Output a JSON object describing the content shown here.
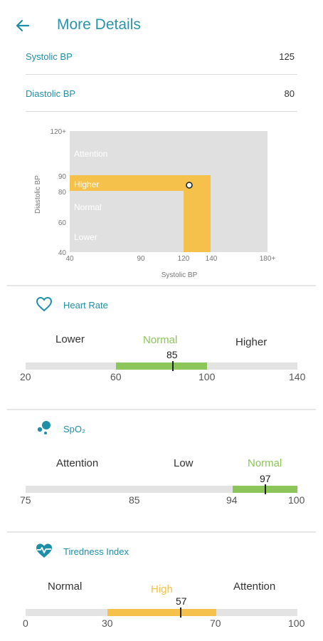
{
  "header": {
    "title": "More Details"
  },
  "bp": {
    "systolic_label": "Systolic BP",
    "systolic_value": "125",
    "diastolic_label": "Diastolic BP",
    "diastolic_value": "80"
  },
  "chart_data": {
    "type": "scatter",
    "xlabel": "Systolic BP",
    "ylabel": "Diastolic BP",
    "x_ticks": [
      "40",
      "90",
      "120",
      "140",
      "180+"
    ],
    "y_ticks": [
      "120+",
      "90",
      "80",
      "60",
      "40"
    ],
    "zones": [
      "Attention",
      "Higher",
      "Normal",
      "Lower"
    ],
    "x": [
      125
    ],
    "y": [
      80
    ],
    "colors": {
      "background": "#e0e0e0",
      "higher": "#f5c14a"
    }
  },
  "heart_rate": {
    "title": "Heart Rate",
    "zones": [
      "Lower",
      "Normal",
      "Higher"
    ],
    "ticks": [
      "20",
      "60",
      "100",
      "140"
    ],
    "value": "85",
    "colors": {
      "normal": "#8cc55a"
    }
  },
  "spo2": {
    "title": "SpO₂",
    "zones": [
      "Attention",
      "Low",
      "Normal"
    ],
    "ticks": [
      "75",
      "85",
      "94",
      "100"
    ],
    "value": "97",
    "colors": {
      "normal": "#8cc55a"
    }
  },
  "tiredness": {
    "title": "Tiredness Index",
    "zones": [
      "Normal",
      "High",
      "Attention"
    ],
    "ticks": [
      "0",
      "30",
      "70",
      "100"
    ],
    "value": "57",
    "colors": {
      "high": "#f5c14a"
    }
  },
  "icons": {
    "back": "arrow-left-icon",
    "heart": "heart-outline-icon",
    "spo2": "oxygen-bubbles-icon",
    "tiredness": "heart-pulse-icon"
  }
}
